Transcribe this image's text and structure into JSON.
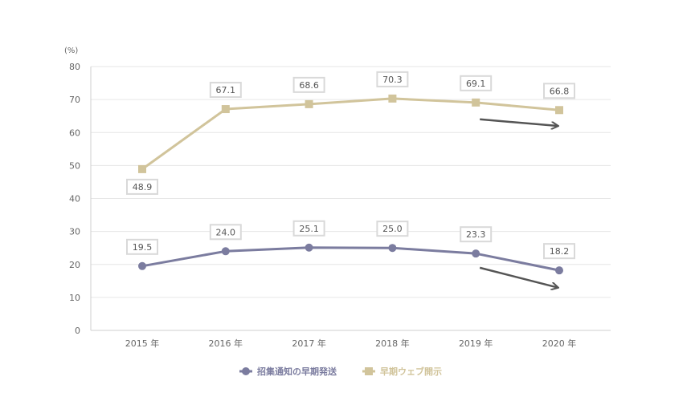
{
  "chart_data": {
    "type": "line",
    "unit_label": "(%)",
    "categories": [
      "2015 年",
      "2016 年",
      "2017 年",
      "2018 年",
      "2019 年",
      "2020 年"
    ],
    "ylim": [
      0,
      80
    ],
    "yticks": [
      0,
      10,
      20,
      30,
      40,
      50,
      60,
      70,
      80
    ],
    "grid": true,
    "legend_position": "bottom",
    "series": [
      {
        "name": "招集通知の早期発送",
        "marker": "circle",
        "color": "#7b7c9f",
        "values": [
          19.5,
          24.0,
          25.1,
          25.0,
          23.3,
          18.2
        ],
        "labels": [
          "19.5",
          "24.0",
          "25.1",
          "25.0",
          "23.3",
          "18.2"
        ]
      },
      {
        "name": "早期ウェブ開示",
        "marker": "square",
        "color": "#d1c49b",
        "values": [
          48.9,
          67.1,
          68.6,
          70.3,
          69.1,
          66.8
        ],
        "labels": [
          "48.9",
          "67.1",
          "68.6",
          "70.3",
          "69.1",
          "66.8"
        ]
      }
    ],
    "annotations": [
      {
        "type": "arrow",
        "from": [
          "2019 年",
          64
        ],
        "to": [
          "2020 年",
          62
        ]
      },
      {
        "type": "arrow",
        "from": [
          "2019 年",
          19
        ],
        "to": [
          "2020 年",
          13
        ]
      }
    ]
  }
}
